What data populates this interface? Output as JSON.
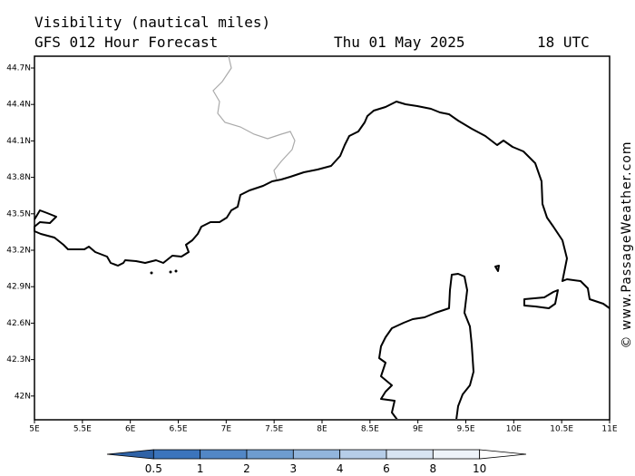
{
  "header": {
    "title": "Visibility (nautical miles)",
    "subtitle": "GFS 012 Hour Forecast",
    "date": "Thu 01 May 2025",
    "time": "18 UTC"
  },
  "map": {
    "lat_labels": [
      "44.7N",
      "44.4N",
      "44.1N",
      "43.8N",
      "43.5N",
      "43.2N",
      "42.9N",
      "42.6N",
      "42.3N",
      "42N"
    ],
    "lon_labels": [
      "5E",
      "5.5E",
      "6E",
      "6.5E",
      "7E",
      "7.5E",
      "8E",
      "8.5E",
      "9E",
      "9.5E",
      "10E",
      "10.5E",
      "11E"
    ]
  },
  "colorbar": {
    "labels": [
      "0.5",
      "1",
      "2",
      "3",
      "4",
      "6",
      "8",
      "10"
    ],
    "colors": [
      "#2f62a6",
      "#3b74bc",
      "#5287c6",
      "#6e9ccf",
      "#92b5dc",
      "#b6cde8",
      "#d8e4f2",
      "#eef3f9",
      "#ffffff"
    ]
  },
  "watermark": "© www.PassageWeather.com"
}
